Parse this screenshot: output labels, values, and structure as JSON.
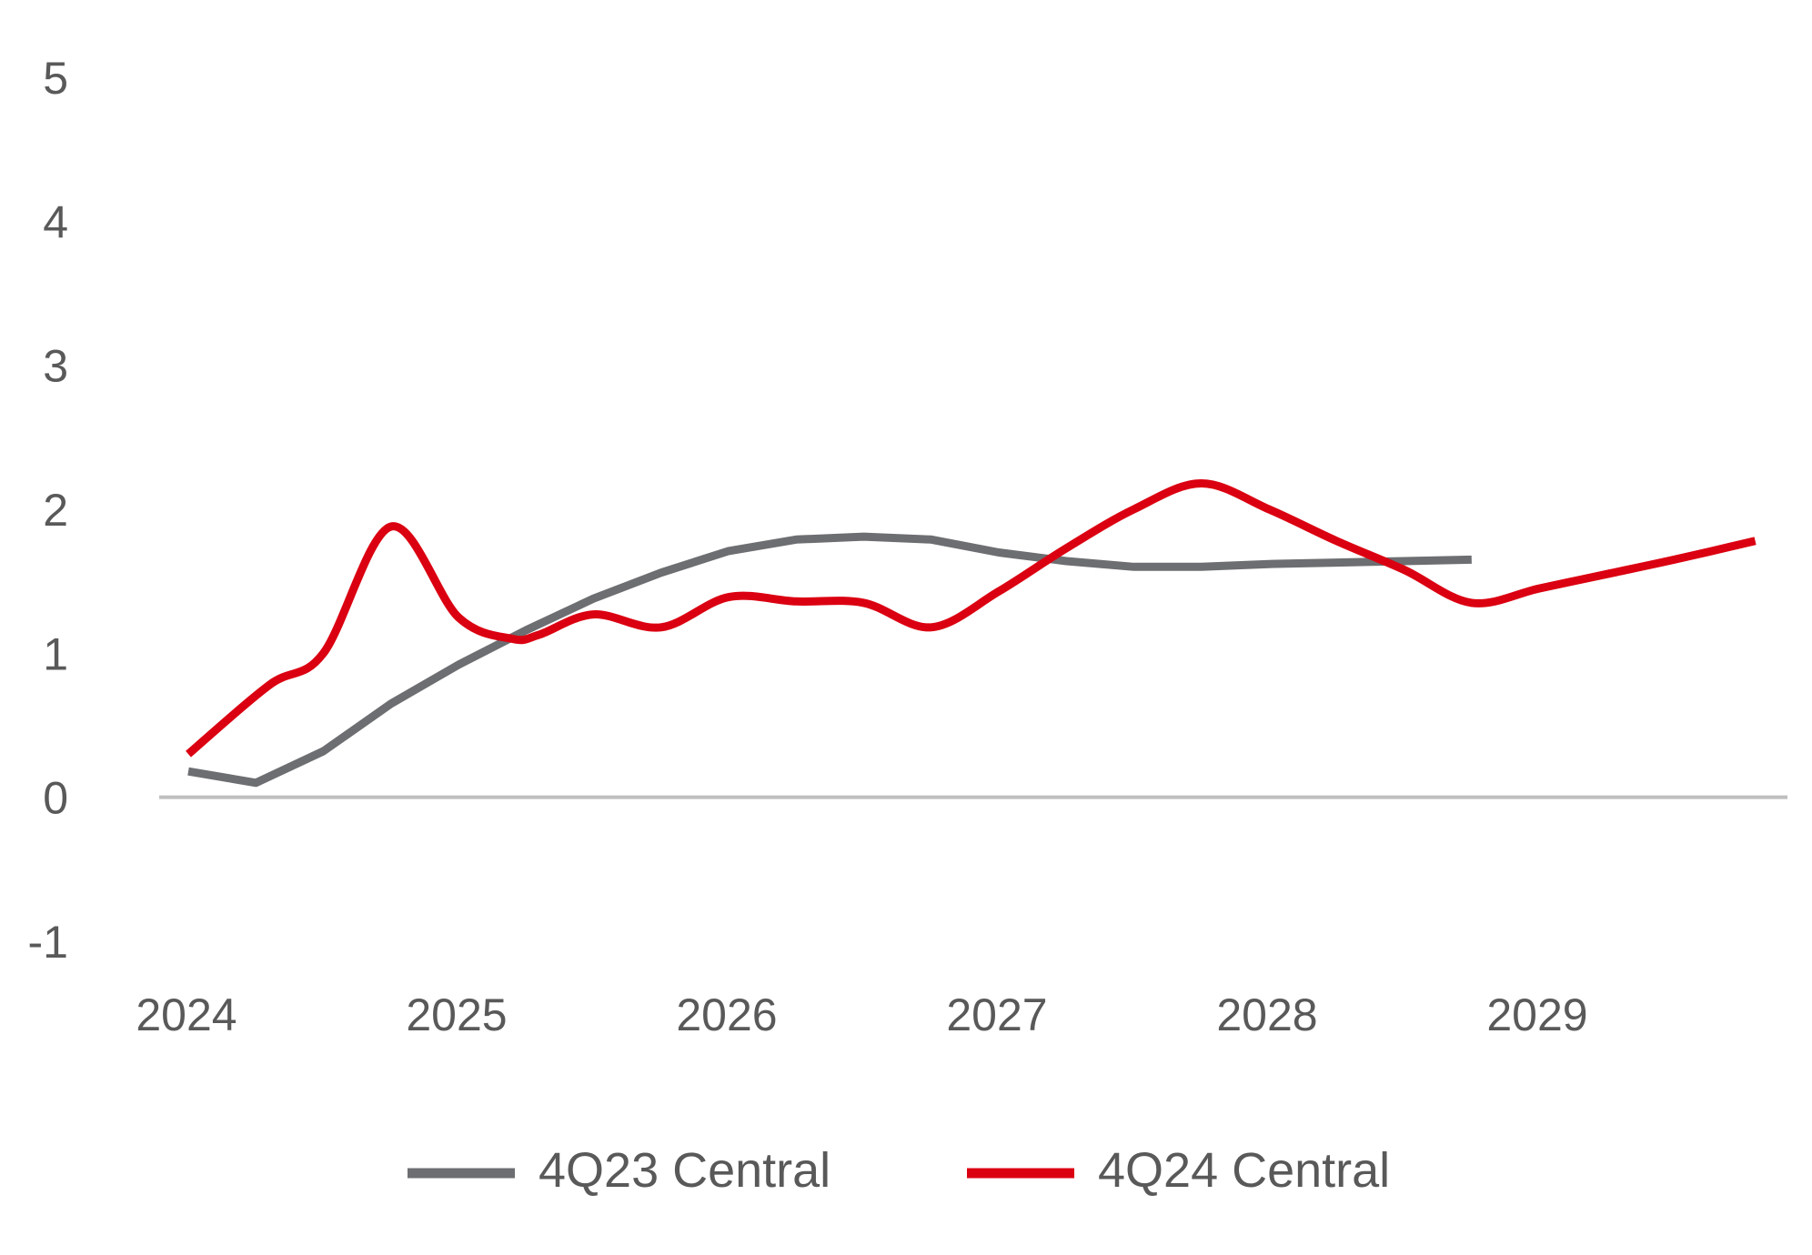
{
  "chart_data": {
    "type": "line",
    "title": "",
    "xlabel": "",
    "ylabel": "",
    "ylim": [
      -1,
      5
    ],
    "xlim": [
      2024,
      2029.8
    ],
    "y_ticks": [
      5,
      4,
      3,
      2,
      1,
      0,
      -1
    ],
    "y_tick_labels": [
      "5",
      "4",
      "3",
      "2",
      "1",
      "0",
      "-1"
    ],
    "x_ticks": [
      2024,
      2025,
      2026,
      2027,
      2028,
      2029
    ],
    "x_tick_labels": [
      "2024",
      "2025",
      "2026",
      "2027",
      "2028",
      "2029"
    ],
    "grid": false,
    "legend_position": "bottom",
    "series": [
      {
        "name": "4Q23 Central",
        "color": "#6d6e71",
        "smooth": false,
        "x": [
          2024.0,
          2024.25,
          2024.5,
          2024.75,
          2025.0,
          2025.25,
          2025.5,
          2025.75,
          2026.0,
          2026.25,
          2026.5,
          2026.75,
          2027.0,
          2027.25,
          2027.5,
          2027.75,
          2028.0,
          2028.25,
          2028.5,
          2028.75
        ],
        "values": [
          0.18,
          0.1,
          0.32,
          0.65,
          0.92,
          1.16,
          1.38,
          1.56,
          1.71,
          1.79,
          1.81,
          1.79,
          1.7,
          1.64,
          1.6,
          1.6,
          1.62,
          1.63,
          1.64,
          1.65
        ]
      },
      {
        "name": "4Q24 Central",
        "color": "#db0011",
        "smooth": true,
        "x": [
          2024.0,
          2024.3,
          2024.5,
          2024.75,
          2025.0,
          2025.2,
          2025.3,
          2025.5,
          2025.75,
          2026.0,
          2026.25,
          2026.5,
          2026.75,
          2027.0,
          2027.25,
          2027.5,
          2027.75,
          2028.0,
          2028.25,
          2028.5,
          2028.75,
          2029.0,
          2029.25,
          2029.5,
          2029.8
        ],
        "values": [
          0.3,
          0.78,
          1.0,
          1.88,
          1.25,
          1.1,
          1.13,
          1.27,
          1.18,
          1.39,
          1.36,
          1.35,
          1.18,
          1.43,
          1.73,
          2.0,
          2.18,
          2.0,
          1.78,
          1.58,
          1.35,
          1.45,
          1.55,
          1.65,
          1.78
        ]
      }
    ]
  }
}
